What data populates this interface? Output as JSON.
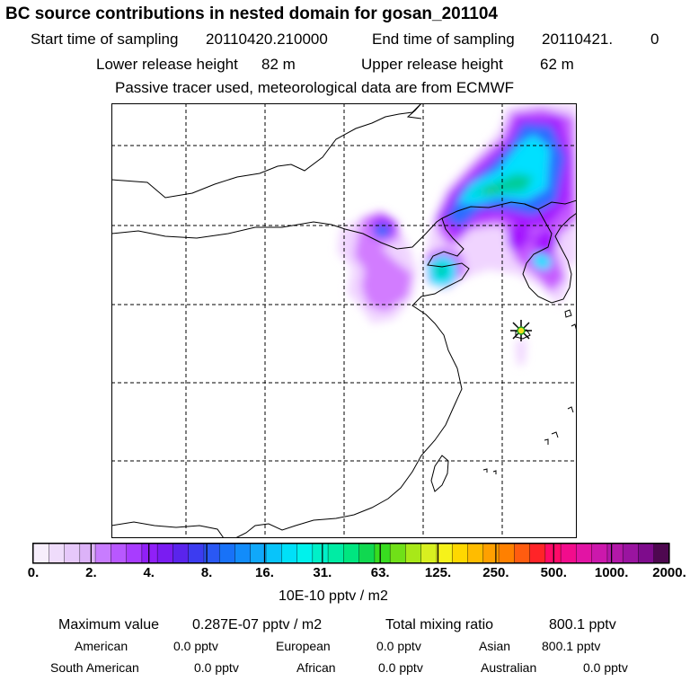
{
  "header": {
    "title": "BC  source contributions in nested domain for gosan_201104",
    "start_label": "Start time of sampling",
    "start_value": "20110420.210000",
    "end_label": "End time of sampling",
    "end_value": "20110421.",
    "end_suffix": "0",
    "lower_label": "Lower release height",
    "lower_value": "82 m",
    "upper_label": "Upper release height",
    "upper_value": "62 m",
    "note": "Passive tracer used, meteorological data are from ECMWF"
  },
  "map": {
    "receptor_icon": "star-marker-icon",
    "palette": {
      "light": "#f2d8ff",
      "violet": "#c860ff",
      "purple": "#a000ff",
      "blue": "#1e6bff",
      "cyan": "#00e6ff",
      "teal": "#00d6a0",
      "green": "#18c818"
    }
  },
  "colorbar": {
    "colors": [
      "#f7eefc",
      "#efdcfb",
      "#e6c8fa",
      "#dcb2f8",
      "#c87cff",
      "#b858ff",
      "#a83cff",
      "#9020f8",
      "#7a1cf2",
      "#5a24ec",
      "#3c3cf0",
      "#2a58f4",
      "#1872f8",
      "#128cfa",
      "#10a8fa",
      "#08c4fa",
      "#00e0f8",
      "#00f2ec",
      "#00f0c8",
      "#00eca4",
      "#00e680",
      "#10d850",
      "#38dc20",
      "#70e018",
      "#a8e818",
      "#d8f020",
      "#f6f21a",
      "#ffd800",
      "#ffbc00",
      "#ffa000",
      "#ff8000",
      "#ff5c10",
      "#ff2428",
      "#ff0a68",
      "#f20c8c",
      "#e214a4",
      "#cc18ac",
      "#b318a8",
      "#9a14a0",
      "#7e0c8c",
      "#4e0850"
    ],
    "ticks": [
      "0.",
      "2.",
      "4.",
      "8.",
      "16.",
      "31.",
      "63.",
      "125.",
      "250.",
      "500.",
      "1000.",
      "2000."
    ],
    "unit": "10E-10 pptv / m2"
  },
  "footer": {
    "max_label": "Maximum value",
    "max_value": "0.287E-07 pptv / m2",
    "total_label": "Total mixing ratio",
    "total_value": "800.1 pptv",
    "regions": [
      {
        "name": "American",
        "value": "0.0 pptv"
      },
      {
        "name": "European",
        "value": "0.0 pptv"
      },
      {
        "name": "Asian",
        "value": "800.1 pptv"
      },
      {
        "name": "South American",
        "value": "0.0 pptv"
      },
      {
        "name": "African",
        "value": "0.0 pptv"
      },
      {
        "name": "Australian",
        "value": "0.0 pptv"
      }
    ]
  }
}
